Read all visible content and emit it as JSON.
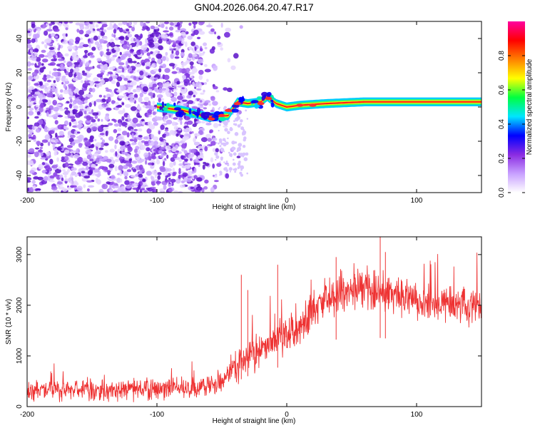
{
  "title": "GN04.2026.064.20.47.R17",
  "chart_data": [
    {
      "type": "heatmap",
      "name": "spectrogram",
      "xlabel": "Height of straight line (km)",
      "ylabel": "Frequency (Hz)",
      "xlim": [
        -200,
        150
      ],
      "ylim": [
        -50,
        50
      ],
      "xticks": [
        -200,
        -100,
        0,
        100
      ],
      "xtick_labels": [
        "-200",
        "-100",
        "0",
        "100"
      ],
      "yticks": [
        -40,
        -20,
        0,
        20,
        40
      ],
      "ytick_labels": [
        "-40",
        "-20",
        "0",
        "20",
        "40"
      ],
      "colorbar": {
        "label": "Normalized spectral amplitude",
        "range": [
          0,
          1
        ],
        "ticks": [
          0.0,
          0.2,
          0.4,
          0.6,
          0.8
        ],
        "tick_labels": [
          "0.0",
          "0.2",
          "0.4",
          "0.6",
          "0.8"
        ],
        "colormap": [
          "#ffffff",
          "#c8a0ff",
          "#8a2be2",
          "#0000ff",
          "#00e5ff",
          "#00ff40",
          "#ffff00",
          "#ff8000",
          "#ff0000",
          "#ff00a0"
        ]
      },
      "signal_line": [
        {
          "x": -100,
          "y": 0
        },
        {
          "x": -80,
          "y": -2
        },
        {
          "x": -60,
          "y": -6
        },
        {
          "x": -45,
          "y": -5
        },
        {
          "x": -38,
          "y": 3
        },
        {
          "x": -30,
          "y": 2
        },
        {
          "x": -20,
          "y": 3
        },
        {
          "x": -15,
          "y": 6
        },
        {
          "x": -8,
          "y": 2
        },
        {
          "x": 0,
          "y": 0
        },
        {
          "x": 10,
          "y": 1
        },
        {
          "x": 30,
          "y": 2
        },
        {
          "x": 60,
          "y": 3
        },
        {
          "x": 100,
          "y": 3
        },
        {
          "x": 150,
          "y": 3
        }
      ],
      "noise_region_x": [
        -200,
        -55
      ]
    },
    {
      "type": "line",
      "name": "snr",
      "xlabel": "Height of straight line (km)",
      "ylabel": "SNR (10 * v/v)",
      "xlim": [
        -200,
        150
      ],
      "ylim": [
        0,
        3350
      ],
      "xticks": [
        -200,
        -100,
        0,
        100
      ],
      "xtick_labels": [
        "-200",
        "-100",
        "0",
        "100"
      ],
      "yticks": [
        0,
        1000,
        2000,
        3000
      ],
      "ytick_labels": [
        "0",
        "1000",
        "2000",
        "3000"
      ],
      "line_color": "#ee3333",
      "trend": [
        {
          "x": -200,
          "y": 320
        },
        {
          "x": -150,
          "y": 320
        },
        {
          "x": -100,
          "y": 340
        },
        {
          "x": -70,
          "y": 380
        },
        {
          "x": -50,
          "y": 500
        },
        {
          "x": -40,
          "y": 800
        },
        {
          "x": -30,
          "y": 1000
        },
        {
          "x": -20,
          "y": 1150
        },
        {
          "x": -10,
          "y": 1250
        },
        {
          "x": 0,
          "y": 1350
        },
        {
          "x": 10,
          "y": 1650
        },
        {
          "x": 20,
          "y": 1900
        },
        {
          "x": 30,
          "y": 2150
        },
        {
          "x": 45,
          "y": 2250
        },
        {
          "x": 60,
          "y": 2300
        },
        {
          "x": 75,
          "y": 2250
        },
        {
          "x": 90,
          "y": 2150
        },
        {
          "x": 110,
          "y": 2050
        },
        {
          "x": 130,
          "y": 2000
        },
        {
          "x": 150,
          "y": 1950
        }
      ],
      "noise_amplitude": 150,
      "spikes": [
        {
          "x": -35,
          "y": 2600
        },
        {
          "x": -30,
          "y": 2300
        },
        {
          "x": -7,
          "y": 2800
        },
        {
          "x": 38,
          "y": 2950
        },
        {
          "x": 72,
          "y": 3350
        },
        {
          "x": 76,
          "y": 3050
        }
      ]
    }
  ]
}
